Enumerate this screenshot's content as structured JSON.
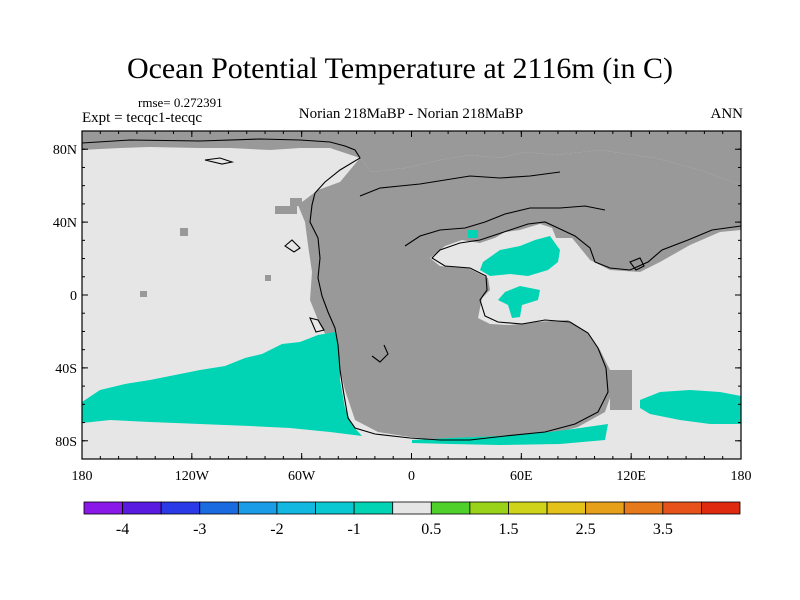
{
  "title": "Ocean Potential Temperature at 2116m (in C)",
  "rmse_text": "rmse= 0.272391",
  "expt_text": "Expt = tecqc1-tecqc",
  "subtitle": "Norian 218MaBP - Norian 218MaBP",
  "season": "ANN",
  "map": {
    "colors": {
      "land": "#999999",
      "ocean_zero": "#e6e6e6",
      "anomaly_cool": "#00d4b4",
      "coast": "#000000"
    },
    "lat_ticks": [
      {
        "value": 80,
        "label": "80N"
      },
      {
        "value": 40,
        "label": "40N"
      },
      {
        "value": 0,
        "label": "0"
      },
      {
        "value": -40,
        "label": "40S"
      },
      {
        "value": -80,
        "label": "80S"
      }
    ],
    "lon_ticks": [
      {
        "value": -180,
        "label": "180"
      },
      {
        "value": -120,
        "label": "120W"
      },
      {
        "value": -60,
        "label": "60W"
      },
      {
        "value": 0,
        "label": "0"
      },
      {
        "value": 60,
        "label": "60E"
      },
      {
        "value": 120,
        "label": "120E"
      },
      {
        "value": 180,
        "label": "180"
      }
    ]
  },
  "colorbar": {
    "colors": [
      "#8a18e8",
      "#5a1ae0",
      "#2a3ae6",
      "#1a6ae0",
      "#1a9ce6",
      "#12b8e0",
      "#0ac8d2",
      "#00d4b4",
      "#e6e6e6",
      "#50d02a",
      "#9ad21a",
      "#cfd41a",
      "#e4c21a",
      "#e6a01a",
      "#e67a1a",
      "#e6521a",
      "#e02a10"
    ],
    "labels": [
      {
        "boundary": 1,
        "text": "-4"
      },
      {
        "boundary": 3,
        "text": "-3"
      },
      {
        "boundary": 5,
        "text": "-2"
      },
      {
        "boundary": 7,
        "text": "-1"
      },
      {
        "boundary": 9,
        "text": "0.5"
      },
      {
        "boundary": 11,
        "text": "1.5"
      },
      {
        "boundary": 13,
        "text": "2.5"
      },
      {
        "boundary": 15,
        "text": "3.5"
      }
    ]
  }
}
